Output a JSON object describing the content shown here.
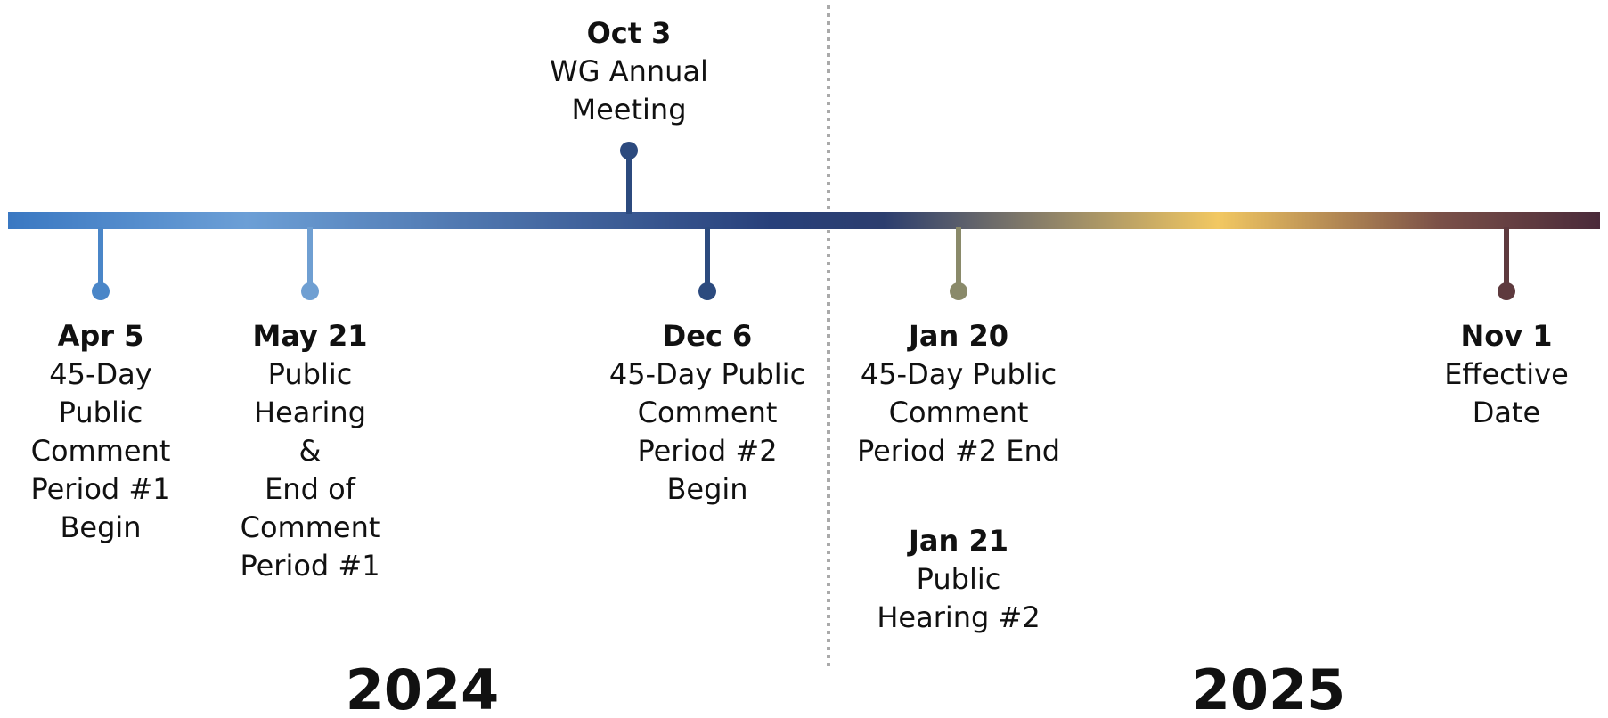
{
  "years": [
    "2024",
    "2025"
  ],
  "events": [
    {
      "date": "Apr 5",
      "lines": [
        "45-Day",
        "Public",
        "Comment",
        "Period #1",
        "Begin"
      ]
    },
    {
      "date": "May 21",
      "lines": [
        "Public",
        "Hearing",
        "&",
        "End of",
        "Comment",
        "Period #1"
      ]
    },
    {
      "date": "Oct 3",
      "lines": [
        "WG Annual",
        "Meeting"
      ]
    },
    {
      "date": "Dec 6",
      "lines": [
        "45-Day Public",
        "Comment",
        "Period #2",
        "Begin"
      ]
    },
    {
      "date": "Jan 20",
      "lines": [
        "45-Day Public",
        "Comment",
        "Period #2 End"
      ]
    },
    {
      "date": "Jan 21",
      "lines": [
        "Public",
        "Hearing #2"
      ]
    },
    {
      "date": "Nov 1",
      "lines": [
        "Effective",
        "Date"
      ]
    }
  ]
}
